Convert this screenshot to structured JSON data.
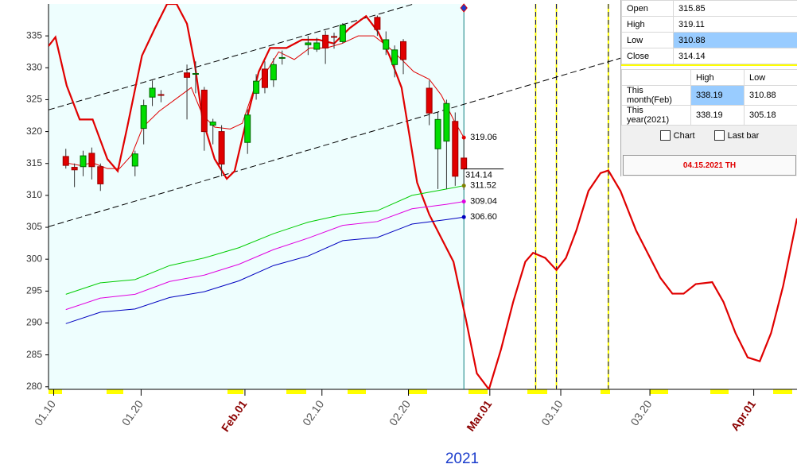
{
  "chart_data": {
    "type": "candlestick",
    "x_label": "2021",
    "xlim": [
      0,
      86.5
    ],
    "ylim": [
      279.6,
      340
    ],
    "yticks": [
      280,
      285,
      290,
      295,
      300,
      305,
      310,
      315,
      320,
      325,
      330,
      335
    ],
    "xticks": [
      {
        "value": 0.6,
        "label": "01.10"
      },
      {
        "value": 10.7,
        "label": "01.20"
      },
      {
        "value": 22.7,
        "label": "Feb.01"
      },
      {
        "value": 31.6,
        "label": "02.10"
      },
      {
        "value": 41.6,
        "label": "02.20"
      },
      {
        "value": 51.0,
        "label": "Mar.01"
      },
      {
        "value": 59.2,
        "label": "03.10"
      },
      {
        "value": 69.5,
        "label": "03.20"
      },
      {
        "value": 81.5,
        "label": "Apr.01"
      }
    ],
    "up_color": "#00dd00",
    "down_color": "#e00000",
    "x": [
      2,
      3,
      4,
      5,
      6,
      10,
      11,
      12,
      13,
      16,
      17,
      18,
      19,
      20,
      23,
      24,
      25,
      26,
      27,
      30,
      31,
      32,
      33,
      34,
      38,
      39,
      40,
      41,
      44,
      45,
      46,
      47,
      48
    ],
    "open": [
      316.1,
      314.4,
      314.5,
      316.6,
      314.5,
      314.6,
      320.5,
      325.4,
      325.8,
      329.2,
      329.0,
      326.5,
      321.0,
      320.0,
      318.3,
      326.0,
      329.8,
      328.1,
      331.5,
      333.6,
      332.9,
      335.1,
      334.9,
      334.1,
      337.9,
      332.9,
      330.5,
      334.1,
      326.8,
      317.3,
      318.5,
      321.6,
      315.85
    ],
    "high": [
      317.3,
      315.0,
      317.0,
      317.5,
      315.0,
      317.0,
      325.0,
      328.0,
      326.5,
      330.5,
      331.0,
      327.0,
      322.0,
      321.0,
      323.5,
      329.0,
      331.0,
      331.5,
      332.7,
      335.0,
      334.7,
      335.8,
      335.5,
      337.0,
      338.2,
      335.7,
      333.5,
      334.5,
      328.0,
      323.0,
      325.0,
      323.0,
      319.11
    ],
    "low": [
      314.2,
      311.3,
      313.0,
      312.5,
      310.7,
      313.0,
      318.0,
      324.0,
      324.6,
      321.9,
      326.0,
      317.0,
      318.0,
      313.0,
      316.5,
      325.0,
      326.0,
      327.0,
      330.5,
      332.0,
      332.5,
      330.6,
      333.0,
      333.8,
      335.0,
      332.0,
      328.5,
      329.0,
      321.0,
      311.0,
      311.0,
      311.5,
      310.88
    ],
    "close": [
      314.7,
      314.0,
      316.2,
      314.5,
      311.8,
      316.5,
      324.1,
      326.8,
      325.7,
      328.5,
      329.1,
      320.0,
      321.5,
      314.9,
      322.6,
      327.9,
      326.9,
      330.5,
      331.6,
      333.9,
      333.9,
      333.1,
      334.8,
      336.7,
      336.0,
      334.4,
      332.8,
      331.3,
      322.9,
      321.9,
      324.4,
      313.0,
      314.14
    ],
    "overlays": [
      {
        "color": "#e00000",
        "line_width": 2.2,
        "x": [
          0,
          0.8,
          2.1,
          3.6,
          5.1,
          6.8,
          8.0,
          9.1,
          10.8,
          12.3,
          13.7,
          14.8,
          16.0,
          16.9,
          17.8,
          19.2,
          20.6,
          21.5,
          22.9,
          24.3,
          25.6,
          27.5,
          29.3,
          31.2,
          33.0,
          34.8,
          36.7,
          38.1,
          39.4,
          40.8,
          41.7,
          42.6,
          44.0,
          45.4,
          46.8,
          48.2,
          49.5,
          50.9,
          52.3,
          53.7,
          55.1,
          56.0,
          57.4,
          58.7,
          59.8,
          61.0,
          62.4,
          63.8,
          64.7,
          66.1,
          67.9,
          69.3,
          70.7,
          72.1,
          73.4,
          74.8,
          76.7,
          78.0,
          79.4,
          80.8,
          82.2,
          83.5,
          84.9,
          86.5
        ],
        "values": [
          333.4,
          334.8,
          327.2,
          321.9,
          321.9,
          315.7,
          313.8,
          320.7,
          331.9,
          336.2,
          340,
          340,
          336.9,
          330.6,
          321.9,
          315.7,
          312.6,
          313.8,
          321.9,
          329.4,
          333.1,
          333.1,
          334.4,
          334.4,
          333.8,
          336.2,
          338.1,
          335.6,
          331.9,
          326.9,
          319.5,
          312.0,
          307.0,
          303.3,
          299.6,
          290.8,
          282.1,
          279.6,
          285.9,
          293.3,
          299.6,
          301.0,
          300.2,
          298.3,
          300.2,
          304.5,
          310.7,
          313.5,
          313.9,
          310.7,
          304.5,
          300.8,
          297.1,
          294.6,
          294.6,
          296.1,
          296.4,
          293.3,
          288.4,
          284.6,
          284.0,
          288.4,
          295.8,
          306.4
        ]
      },
      {
        "color": "#e00000",
        "line_width": 1,
        "x": [
          2.0,
          3.6,
          5.1,
          6.8,
          8.2,
          9.6,
          10.9,
          12.8,
          14.6,
          16.5,
          17.8,
          19.2,
          21.0,
          22.4,
          23.8,
          25.2,
          26.6,
          28.4,
          30.2,
          32.1,
          33.9,
          35.8,
          37.6,
          39.4,
          40.8,
          42.2,
          44.0,
          45.4,
          46.8,
          48
        ],
        "values": [
          315.1,
          314.7,
          315.1,
          314.2,
          314.2,
          316.3,
          320.7,
          323.2,
          325.0,
          326.9,
          322.6,
          320.7,
          320.4,
          321.3,
          326.9,
          329.4,
          332.5,
          331.3,
          333.1,
          333.1,
          333.8,
          335.0,
          335.0,
          333.1,
          331.3,
          329.4,
          328.2,
          325.7,
          321.9,
          319.06
        ]
      },
      {
        "color": "#00cc00",
        "line_width": 1,
        "x": [
          2,
          6,
          10,
          14,
          18,
          22,
          26,
          30,
          34,
          38,
          42,
          46,
          48
        ],
        "values": [
          294.5,
          296.3,
          296.8,
          299.0,
          300.2,
          301.8,
          304.0,
          305.8,
          307.0,
          307.6,
          310.0,
          311.0,
          311.52
        ]
      },
      {
        "color": "#e000e0",
        "line_width": 1,
        "x": [
          2,
          6,
          10,
          14,
          18,
          22,
          26,
          30,
          34,
          38,
          42,
          46,
          48
        ],
        "values": [
          292.1,
          293.9,
          294.5,
          296.5,
          297.5,
          299.2,
          301.5,
          303.3,
          305.3,
          305.9,
          307.9,
          308.6,
          309.04
        ]
      },
      {
        "color": "#0000c0",
        "line_width": 1,
        "x": [
          2,
          6,
          10,
          14,
          18,
          22,
          26,
          30,
          34,
          38,
          42,
          46,
          48
        ],
        "values": [
          289.9,
          291.7,
          292.2,
          294.0,
          294.9,
          296.6,
          299.0,
          300.5,
          302.9,
          303.4,
          305.5,
          306.2,
          306.6
        ]
      }
    ],
    "trendlines": [
      {
        "x": [
          0,
          42.2
        ],
        "values": [
          323.4,
          340
        ]
      },
      {
        "x": [
          0,
          66.1
        ],
        "values": [
          305.1,
          331.5
        ]
      }
    ],
    "vlines": [
      {
        "x": 48,
        "color": "#008080"
      },
      {
        "x": 56.3,
        "color": "#000080"
      },
      {
        "x": 58.7,
        "color": "#000080"
      },
      {
        "x": 64.7,
        "color": "#000080"
      }
    ],
    "price_marks": [
      {
        "value": 319.06,
        "label": "319.06",
        "color": "#e00000"
      },
      {
        "value": 314.14,
        "label": "314.14",
        "color": "#000000"
      },
      {
        "value": 311.52,
        "label": "311.52",
        "color": "#808000"
      },
      {
        "value": 309.04,
        "label": "309.04",
        "color": "#e000e0"
      },
      {
        "value": 306.6,
        "label": "306.60",
        "color": "#0000c0"
      }
    ],
    "current_x": 48
  },
  "info_panel": {
    "ohlc": [
      {
        "label": "Open",
        "value": 315.85
      },
      {
        "label": "High",
        "value": 319.11
      },
      {
        "label": "Low",
        "value": 310.88
      },
      {
        "label": "Close",
        "value": 314.14
      }
    ],
    "summary": {
      "columns": [
        "High",
        "Low"
      ],
      "rows": [
        {
          "label": "This month(Feb)",
          "values": [
            338.19,
            310.88
          ]
        },
        {
          "label": "This year(2021)",
          "values": [
            338.19,
            305.18
          ]
        }
      ]
    },
    "checkboxes": [
      "Chart",
      "Last bar"
    ],
    "date": "04.15.2021 TH"
  }
}
